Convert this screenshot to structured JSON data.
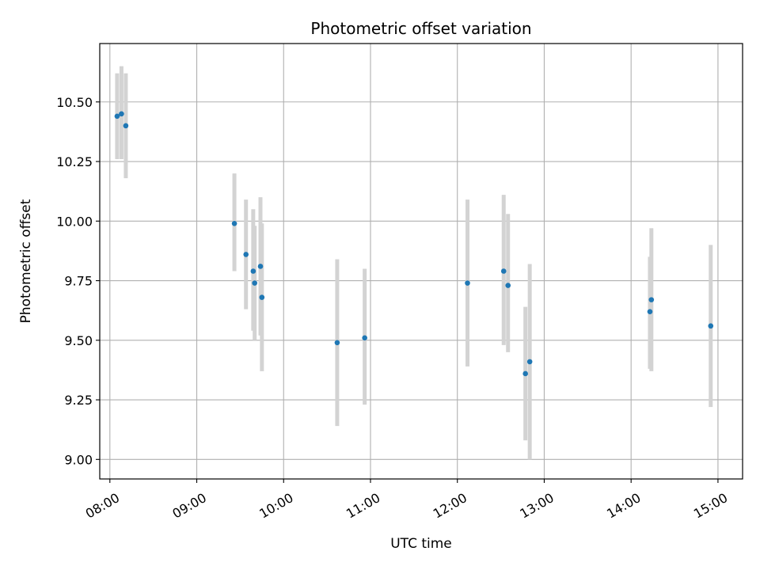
{
  "chart_data": {
    "type": "scatter",
    "title": "Photometric offset variation",
    "xlabel": "UTC time",
    "ylabel": "Photometric offset",
    "x_unit": "UTC time of day (HH:MM)",
    "xlim": [
      "07:53",
      "15:17"
    ],
    "ylim": [
      8.918,
      10.745
    ],
    "grid": true,
    "x_ticks": [
      "08:00",
      "09:00",
      "10:00",
      "11:00",
      "12:00",
      "13:00",
      "14:00",
      "15:00"
    ],
    "y_ticks": [
      "9.00",
      "9.25",
      "9.50",
      "9.75",
      "10.00",
      "10.25",
      "10.50"
    ],
    "colors": {
      "point": "#1f77b4",
      "errorbar": "#d3d3d3",
      "grid": "#b0b0b0",
      "axes": "#000000"
    },
    "series": [
      {
        "points": [
          {
            "x": "08:05",
            "y": 10.44,
            "ylo": 10.26,
            "yhi": 10.62
          },
          {
            "x": "08:08",
            "y": 10.45,
            "ylo": 10.26,
            "yhi": 10.65
          },
          {
            "x": "08:11",
            "y": 10.4,
            "ylo": 10.18,
            "yhi": 10.62
          },
          {
            "x": "09:26",
            "y": 9.99,
            "ylo": 9.79,
            "yhi": 10.2
          },
          {
            "x": "09:34",
            "y": 9.86,
            "ylo": 9.63,
            "yhi": 10.09
          },
          {
            "x": "09:39",
            "y": 9.79,
            "ylo": 9.54,
            "yhi": 10.05
          },
          {
            "x": "09:40",
            "y": 9.74,
            "ylo": 9.5,
            "yhi": 9.98
          },
          {
            "x": "09:44",
            "y": 9.81,
            "ylo": 9.52,
            "yhi": 10.1
          },
          {
            "x": "09:45",
            "y": 9.68,
            "ylo": 9.37,
            "yhi": 9.99
          },
          {
            "x": "10:37",
            "y": 9.49,
            "ylo": 9.14,
            "yhi": 9.84
          },
          {
            "x": "10:56",
            "y": 9.51,
            "ylo": 9.23,
            "yhi": 9.8
          },
          {
            "x": "12:07",
            "y": 9.74,
            "ylo": 9.39,
            "yhi": 10.09
          },
          {
            "x": "12:32",
            "y": 9.79,
            "ylo": 9.48,
            "yhi": 10.11
          },
          {
            "x": "12:35",
            "y": 9.73,
            "ylo": 9.45,
            "yhi": 10.03
          },
          {
            "x": "12:47",
            "y": 9.36,
            "ylo": 9.08,
            "yhi": 9.64
          },
          {
            "x": "12:50",
            "y": 9.41,
            "ylo": 9.0,
            "yhi": 9.82
          },
          {
            "x": "14:13",
            "y": 9.62,
            "ylo": 9.38,
            "yhi": 9.85
          },
          {
            "x": "14:14",
            "y": 9.67,
            "ylo": 9.37,
            "yhi": 9.97
          },
          {
            "x": "14:55",
            "y": 9.56,
            "ylo": 9.22,
            "yhi": 9.9
          }
        ]
      }
    ]
  }
}
